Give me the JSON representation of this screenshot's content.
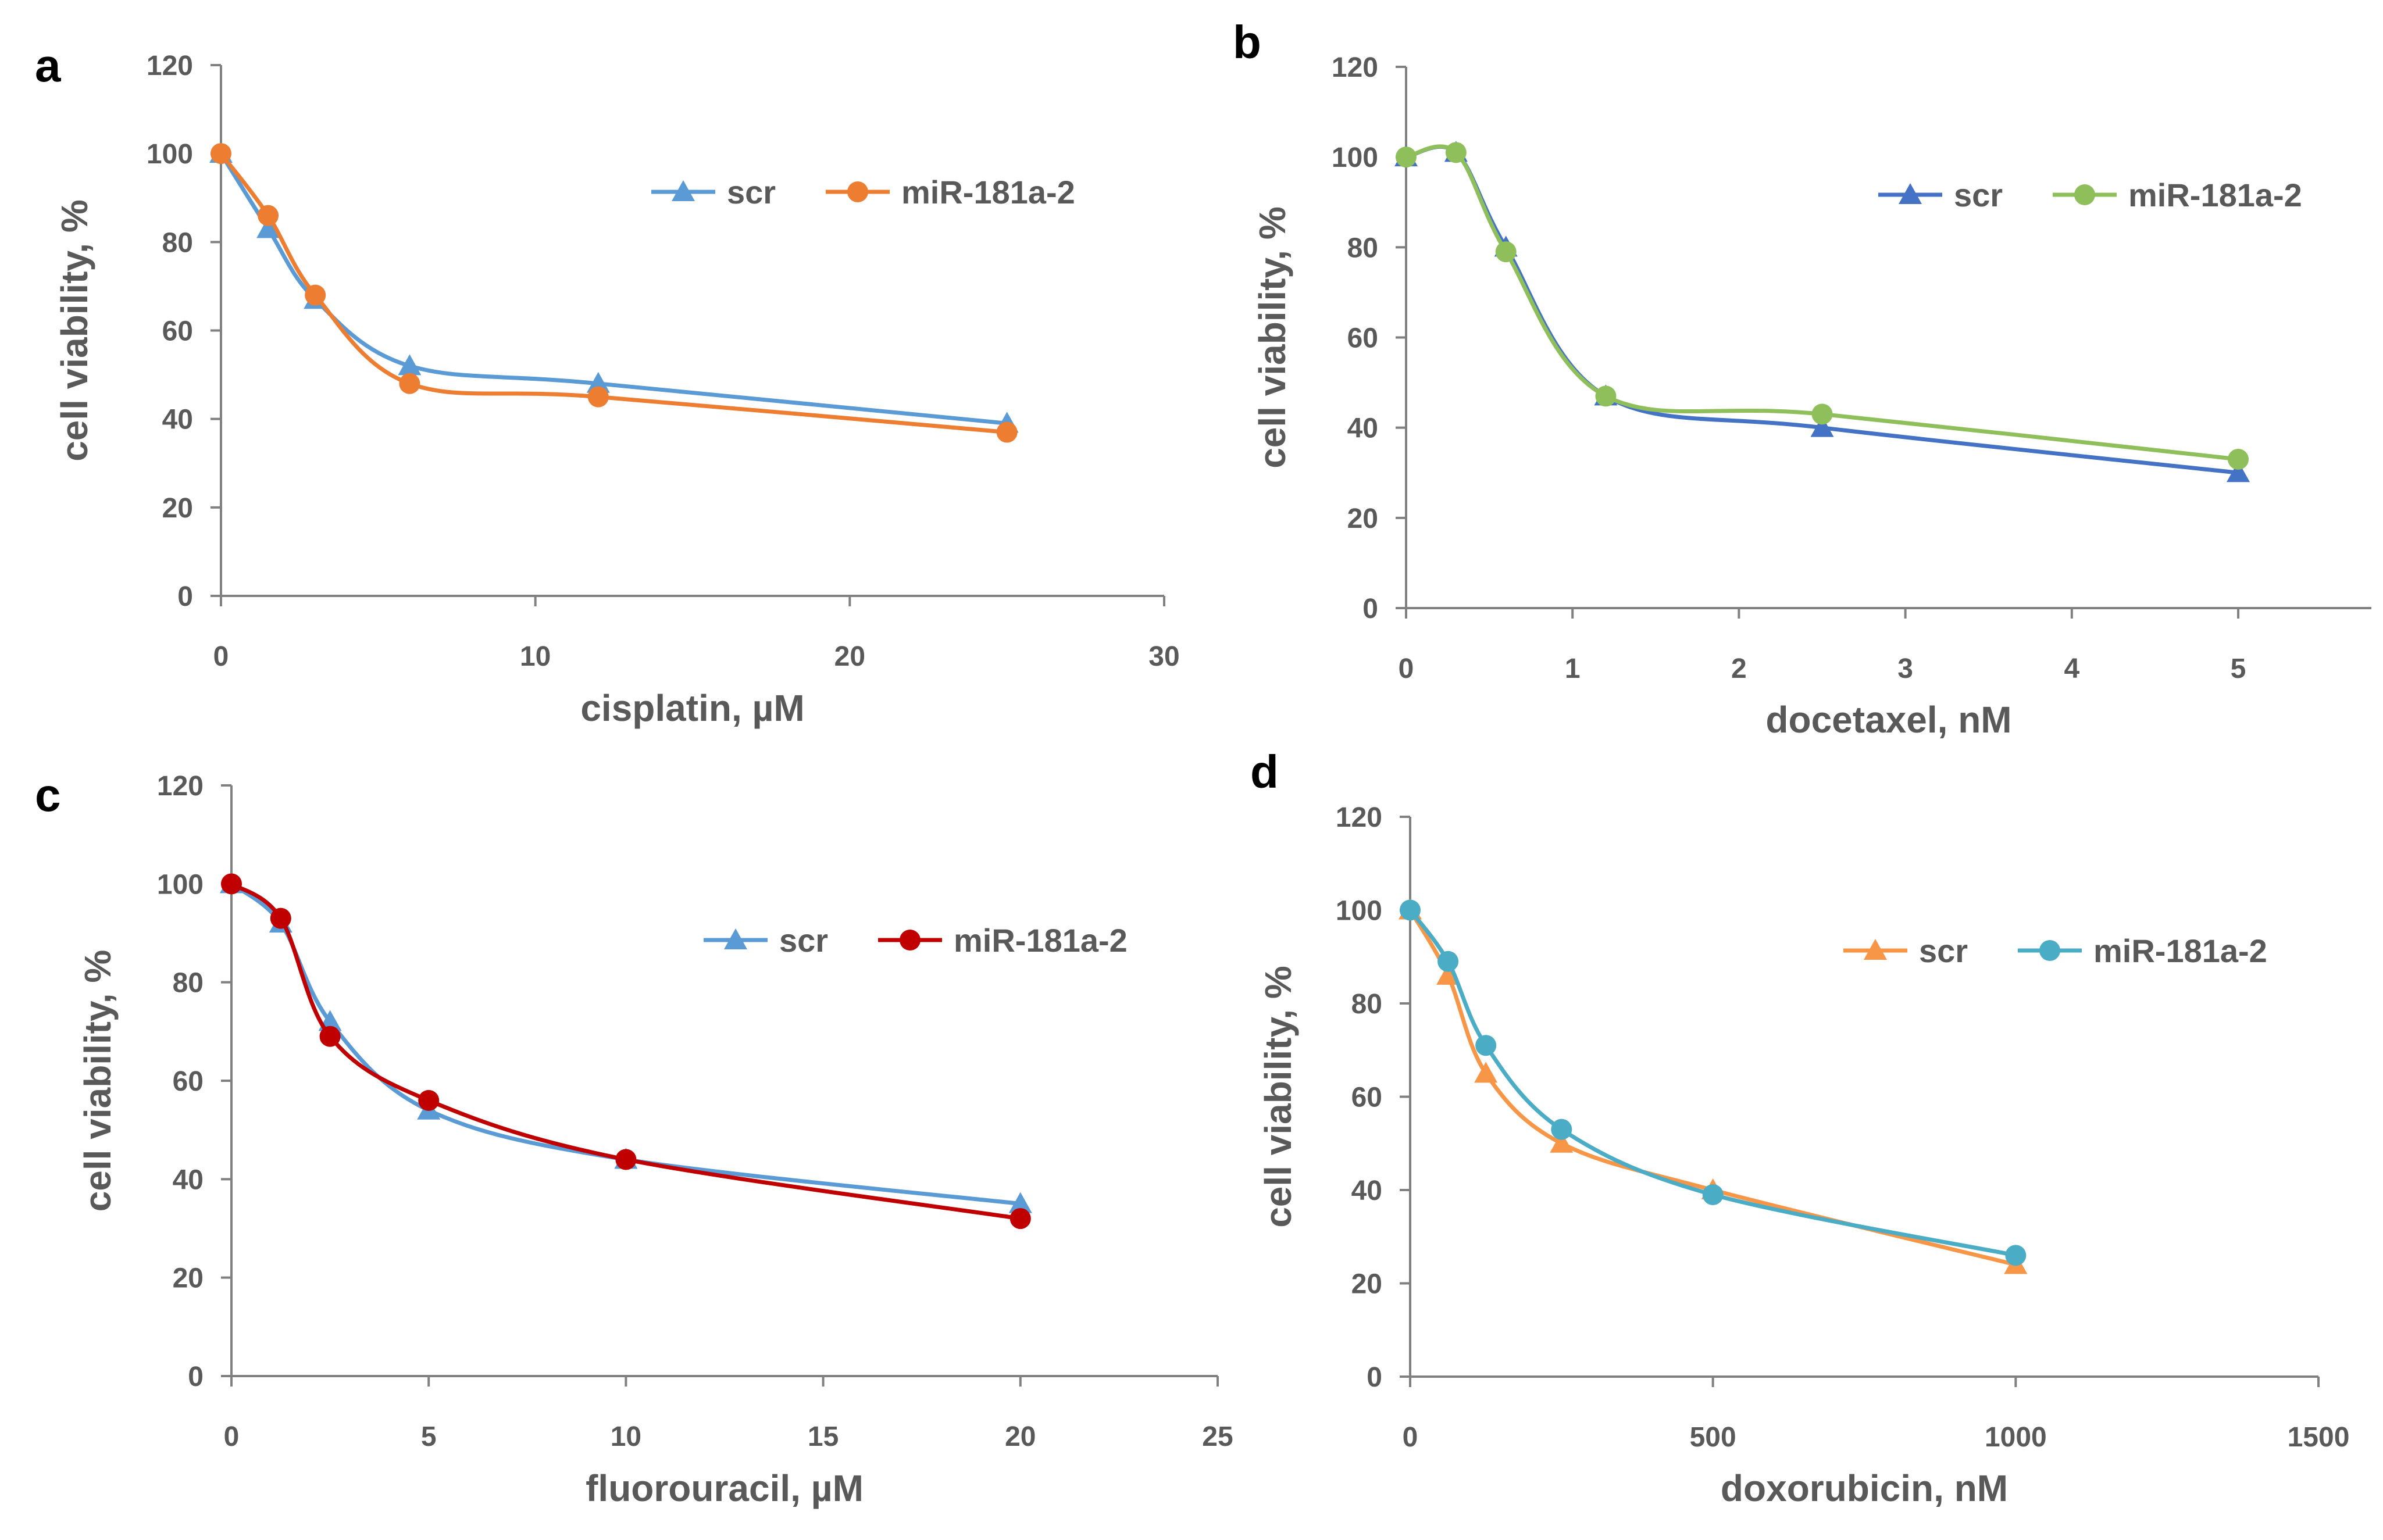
{
  "chart_data": [
    {
      "type": "line",
      "panel": "a",
      "xlabel": "cisplatin, µM",
      "ylabel": "cell viability, %",
      "xlim": [
        0,
        30
      ],
      "ylim": [
        0,
        120
      ],
      "xticks": [
        0,
        10,
        20,
        30
      ],
      "yticks": [
        0,
        20,
        40,
        60,
        80,
        100,
        120
      ],
      "legend_position": "top-right",
      "series": [
        {
          "name": "scr",
          "marker": "triangle",
          "color": "#5B9BD5",
          "x": [
            0,
            1.5,
            3,
            6,
            12,
            25
          ],
          "values": [
            100,
            83,
            67,
            52,
            48,
            39
          ]
        },
        {
          "name": "miR-181a-2",
          "marker": "circle",
          "color": "#ED7D31",
          "x": [
            0,
            1.5,
            3,
            6,
            12,
            25
          ],
          "values": [
            100,
            86,
            68,
            48,
            45,
            37
          ]
        }
      ]
    },
    {
      "type": "line",
      "panel": "b",
      "xlabel": "docetaxel, nM",
      "ylabel": "cell viability, %",
      "xlim": [
        0,
        5.8
      ],
      "ylim": [
        0,
        120
      ],
      "xticks": [
        0,
        1,
        2,
        3,
        4,
        5
      ],
      "yticks": [
        0,
        20,
        40,
        60,
        80,
        100,
        120
      ],
      "legend_position": "top-right",
      "series": [
        {
          "name": "scr",
          "marker": "triangle",
          "color": "#4472C4",
          "x": [
            0,
            0.3,
            0.6,
            1.2,
            2.5,
            5
          ],
          "values": [
            100,
            101,
            80,
            47,
            40,
            30
          ]
        },
        {
          "name": "miR-181a-2",
          "marker": "circle",
          "color": "#8FBF5A",
          "x": [
            0,
            0.3,
            0.6,
            1.2,
            2.5,
            5
          ],
          "values": [
            100,
            101,
            79,
            47,
            43,
            33
          ]
        }
      ]
    },
    {
      "type": "line",
      "panel": "c",
      "xlabel": "fluorouracil, µM",
      "ylabel": "cell viability, %",
      "xlim": [
        0,
        25
      ],
      "ylim": [
        0,
        120
      ],
      "xticks": [
        0,
        5,
        10,
        15,
        20,
        25
      ],
      "yticks": [
        0,
        20,
        40,
        60,
        80,
        100,
        120
      ],
      "legend_position": "top-right",
      "series": [
        {
          "name": "scr",
          "marker": "triangle",
          "color": "#5B9BD5",
          "x": [
            0,
            1.25,
            2.5,
            5,
            10,
            20
          ],
          "values": [
            100,
            92,
            72,
            54,
            44,
            35
          ]
        },
        {
          "name": "miR-181a-2",
          "marker": "circle",
          "color": "#C00000",
          "x": [
            0,
            1.25,
            2.5,
            5,
            10,
            20
          ],
          "values": [
            100,
            93,
            69,
            56,
            44,
            32
          ]
        }
      ]
    },
    {
      "type": "line",
      "panel": "d",
      "xlabel": "doxorubicin, nM",
      "ylabel": "cell viability, %",
      "xlim": [
        0,
        1500
      ],
      "ylim": [
        0,
        120
      ],
      "xticks": [
        0,
        500,
        1000,
        1500
      ],
      "yticks": [
        0,
        20,
        40,
        60,
        80,
        100,
        120
      ],
      "legend_position": "top-right",
      "series": [
        {
          "name": "scr",
          "marker": "triangle",
          "color": "#F79646",
          "x": [
            0,
            62.5,
            125,
            250,
            500,
            1000
          ],
          "values": [
            100,
            86,
            65,
            50,
            40,
            24
          ]
        },
        {
          "name": "miR-181a-2",
          "marker": "circle",
          "color": "#4BACC6",
          "x": [
            0,
            62.5,
            125,
            250,
            500,
            1000
          ],
          "values": [
            100,
            89,
            71,
            53,
            39,
            26
          ]
        }
      ]
    }
  ]
}
